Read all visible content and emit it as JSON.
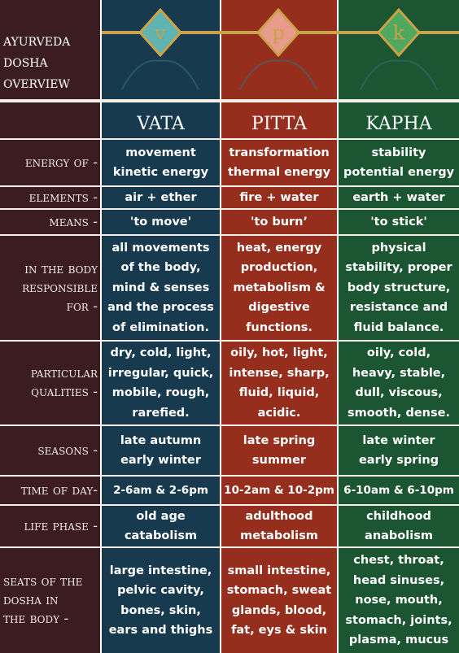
{
  "header": {
    "title": [
      "ayurveda",
      "dosha",
      "overview"
    ],
    "emblems": [
      "v",
      "p",
      "k"
    ]
  },
  "columns": [
    "vata",
    "pitta",
    "kapha"
  ],
  "rows": [
    {
      "label": [
        "energy of -"
      ],
      "cells": [
        [
          "movement",
          "kinetic energy"
        ],
        [
          "transformation",
          "thermal energy"
        ],
        [
          "stability",
          "potential energy"
        ]
      ]
    },
    {
      "label": [
        "elements -"
      ],
      "cells": [
        [
          "air + ether"
        ],
        [
          "fire + water"
        ],
        [
          "earth + water"
        ]
      ]
    },
    {
      "label": [
        "means -"
      ],
      "cells": [
        [
          "'to move'"
        ],
        [
          "'to burn’"
        ],
        [
          "'to stick'"
        ]
      ]
    },
    {
      "label": [
        "in the body",
        "responsible",
        "for -"
      ],
      "cells": [
        [
          "all movements",
          "of the body,",
          "mind & senses",
          "and the process",
          "of elimination."
        ],
        [
          "heat, energy",
          "production,",
          "metabolism &",
          "digestive",
          "functions."
        ],
        [
          "physical",
          "stability, proper",
          "body structure,",
          "resistance and",
          "fluid balance."
        ]
      ]
    },
    {
      "label": [
        "particular",
        "qualities -"
      ],
      "cells": [
        [
          "dry, cold, light,",
          "irregular, quick,",
          "mobile, rough,",
          "rarefied."
        ],
        [
          "oily, hot, light,",
          "intense, sharp,",
          "fluid, liquid,",
          "acidic."
        ],
        [
          "oily, cold,",
          "heavy, stable,",
          "dull, viscous,",
          "smooth, dense."
        ]
      ]
    },
    {
      "label": [
        "seasons -"
      ],
      "cells": [
        [
          "late autumn",
          "early winter"
        ],
        [
          "late spring",
          "summer"
        ],
        [
          "late winter",
          "early spring"
        ]
      ]
    },
    {
      "label": [
        "time of day-"
      ],
      "cells": [
        [
          "2-6am & 2-6pm"
        ],
        [
          "10-2am & 10-2pm"
        ],
        [
          "6-10am & 6-10pm"
        ]
      ]
    },
    {
      "label": [
        "life phase -"
      ],
      "cells": [
        [
          "old age",
          "catabolism"
        ],
        [
          "adulthood",
          "metabolism"
        ],
        [
          "childhood",
          "anabolism"
        ]
      ]
    },
    {
      "label": [
        "seats of the",
        "dosha in",
        "the body -"
      ],
      "cells": [
        [
          "large intestine,",
          "pelvic cavity,",
          "bones, skin,",
          "ears and thighs"
        ],
        [
          "small intestine,",
          "stomach, sweat",
          "glands, blood,",
          "fat, eys & skin"
        ],
        [
          "chest, throat,",
          "head sinuses,",
          "nose, mouth,",
          "stomach, joints,",
          "plasma, mucus"
        ]
      ]
    }
  ]
}
